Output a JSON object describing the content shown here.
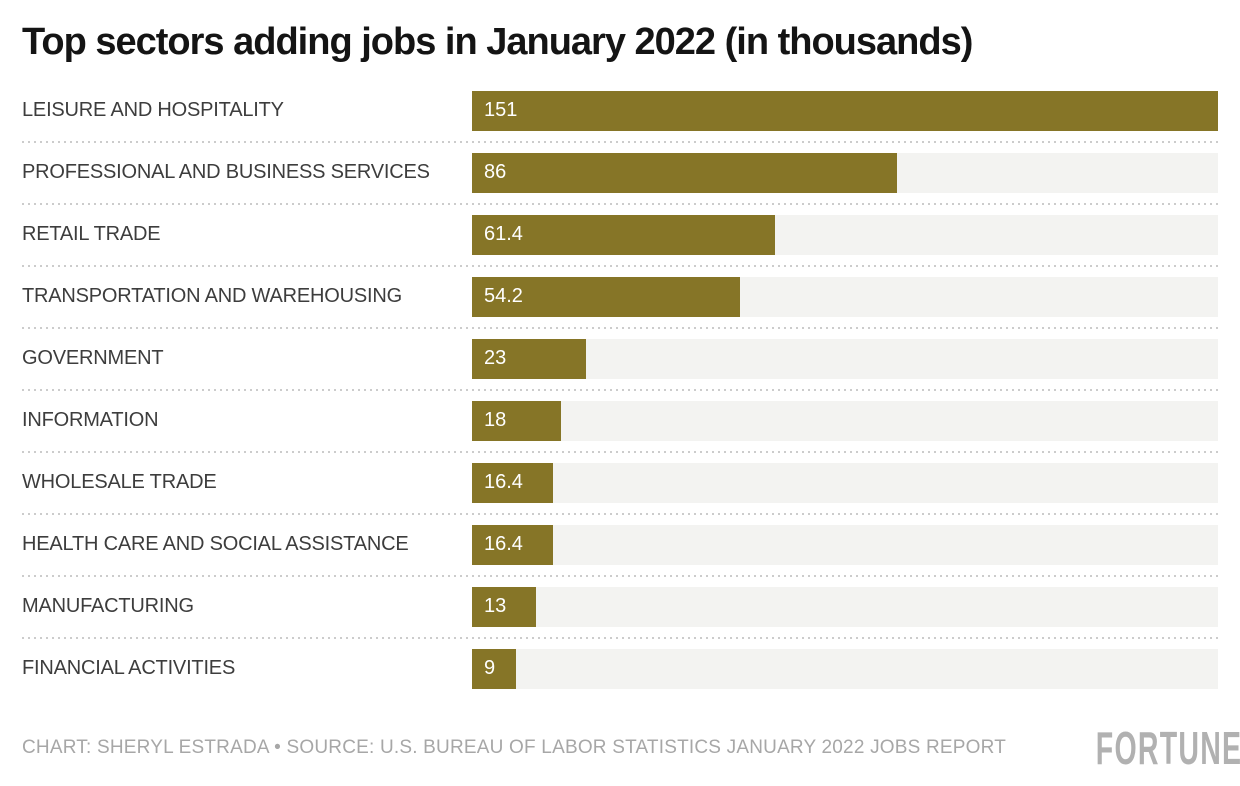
{
  "chart_data": {
    "type": "bar",
    "orientation": "horizontal",
    "title": "Top sectors adding jobs in January 2022 (in thousands)",
    "categories": [
      "LEISURE AND HOSPITALITY",
      "PROFESSIONAL AND BUSINESS SERVICES",
      "RETAIL TRADE",
      "TRANSPORTATION AND WAREHOUSING",
      "GOVERNMENT",
      "INFORMATION",
      "WHOLESALE TRADE",
      "HEALTH CARE AND SOCIAL ASSISTANCE",
      "MANUFACTURING",
      "FINANCIAL ACTIVITIES"
    ],
    "values": [
      151,
      86,
      61.4,
      54.2,
      23,
      18,
      16.4,
      16.4,
      13,
      9
    ],
    "value_labels": [
      "151",
      "86",
      "61.4",
      "54.2",
      "23",
      "18",
      "16.4",
      "16.4",
      "13",
      "9"
    ],
    "xlim": [
      0,
      151
    ],
    "grid": false,
    "legend": false,
    "bar_color": "#867527",
    "track_color": "#f3f3f1",
    "separator_color": "#cccccc"
  },
  "footer": {
    "credit": "CHART: SHERYL ESTRADA • SOURCE: U.S. BUREAU OF LABOR STATISTICS JANUARY 2022 JOBS REPORT",
    "brand": "FORTUNE"
  }
}
